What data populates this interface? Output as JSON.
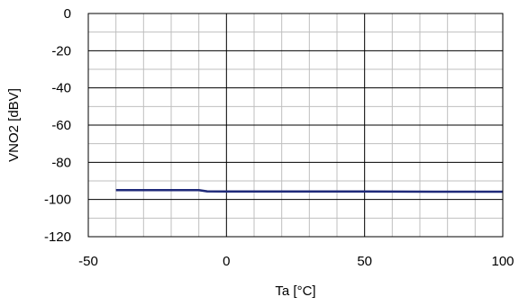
{
  "chart_data": {
    "type": "line",
    "xlabel": "Ta  [°C]",
    "ylabel": "VNO2  [dBV]",
    "xlim": [
      -50,
      100
    ],
    "ylim": [
      -120,
      0
    ],
    "x_ticks": [
      -50,
      0,
      50,
      100
    ],
    "y_ticks": [
      0,
      -20,
      -40,
      -60,
      -80,
      -100,
      -120
    ],
    "grid": true,
    "x_minor_step": 10,
    "y_minor_step": 10,
    "series": [
      {
        "color": "#1f2a7a",
        "x": [
          -40,
          -30,
          -20,
          -13,
          -10,
          -7,
          0,
          10,
          25,
          50,
          75,
          100
        ],
        "y": [
          -95,
          -95,
          -95,
          -95,
          -95,
          -95.6,
          -95.7,
          -95.7,
          -95.7,
          -95.7,
          -95.8,
          -95.8
        ]
      }
    ]
  }
}
